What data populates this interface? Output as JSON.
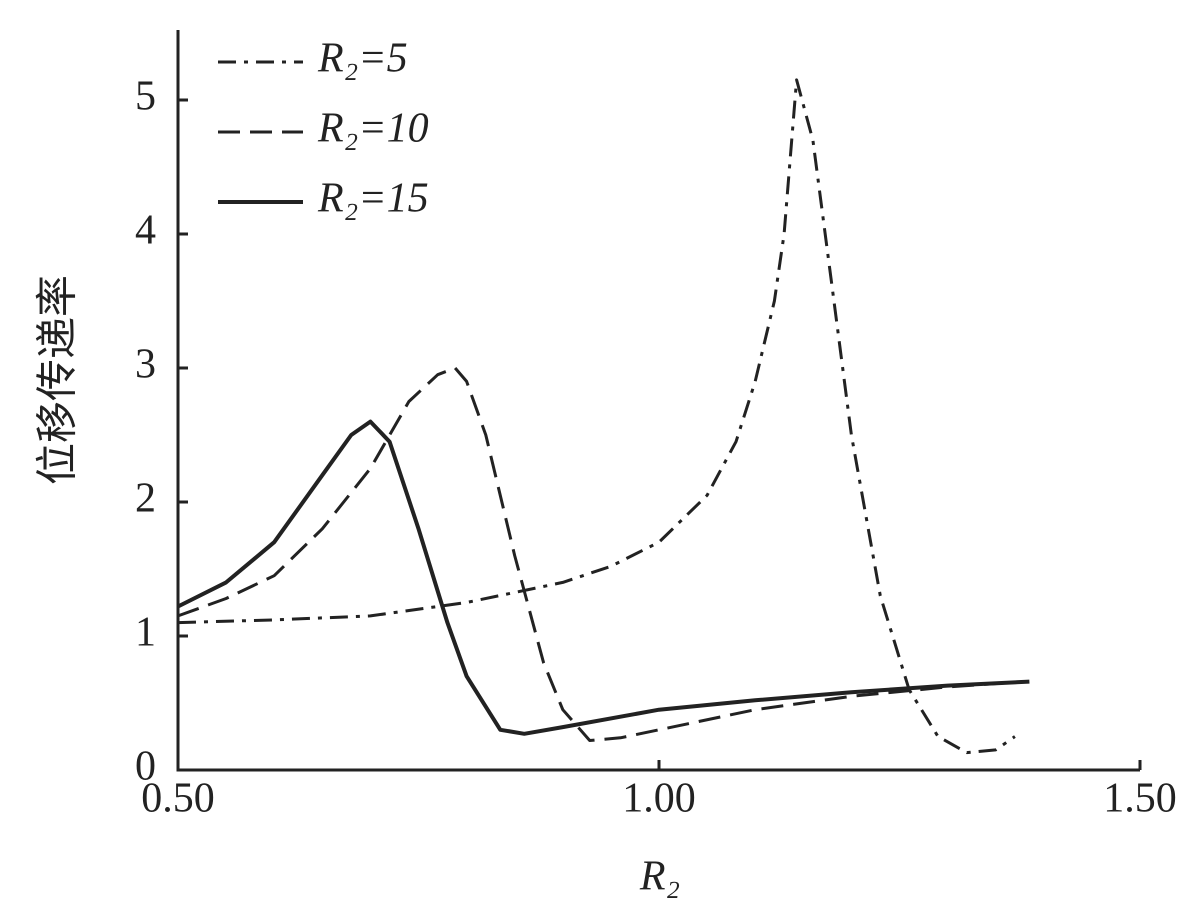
{
  "chart_data": {
    "type": "line",
    "x_label": "R₂",
    "y_label": "位移传递率",
    "xlim": [
      0.5,
      1.5
    ],
    "ylim": [
      0,
      5.5
    ],
    "xticks": [
      {
        "value": 0.5,
        "label": "0.50"
      },
      {
        "value": 1.0,
        "label": "1.00"
      },
      {
        "value": 1.5,
        "label": "1.50"
      }
    ],
    "yticks": [
      0,
      1,
      2,
      3,
      4,
      5
    ],
    "legend": "upper left",
    "series": [
      {
        "name": "R₂=5",
        "color": "#222222",
        "dash": "dashdot",
        "x": [
          0.5,
          0.6,
          0.7,
          0.8,
          0.9,
          0.95,
          1.0,
          1.05,
          1.08,
          1.1,
          1.12,
          1.13,
          1.143,
          1.16,
          1.18,
          1.2,
          1.23,
          1.26,
          1.29,
          1.32,
          1.35,
          1.37
        ],
        "values": [
          1.1,
          1.12,
          1.15,
          1.25,
          1.4,
          1.52,
          1.7,
          2.05,
          2.45,
          2.9,
          3.5,
          4.0,
          5.15,
          4.7,
          3.6,
          2.5,
          1.3,
          0.6,
          0.25,
          0.13,
          0.15,
          0.25
        ]
      },
      {
        "name": "R₂=10",
        "color": "#222222",
        "dash": "dashed",
        "x": [
          0.5,
          0.55,
          0.6,
          0.65,
          0.7,
          0.74,
          0.77,
          0.788,
          0.8,
          0.82,
          0.85,
          0.88,
          0.9,
          0.928,
          0.96,
          1.0,
          1.1,
          1.2,
          1.3,
          1.38
        ],
        "values": [
          1.15,
          1.28,
          1.45,
          1.8,
          2.25,
          2.75,
          2.95,
          3.0,
          2.9,
          2.5,
          1.6,
          0.8,
          0.45,
          0.22,
          0.24,
          0.3,
          0.45,
          0.55,
          0.62,
          0.66
        ]
      },
      {
        "name": "R₂=15",
        "color": "#222222",
        "dash": "solid",
        "x": [
          0.5,
          0.55,
          0.6,
          0.65,
          0.68,
          0.7,
          0.72,
          0.75,
          0.78,
          0.8,
          0.835,
          0.86,
          0.9,
          1.0,
          1.1,
          1.2,
          1.3,
          1.385
        ],
        "values": [
          1.22,
          1.4,
          1.7,
          2.2,
          2.5,
          2.6,
          2.45,
          1.8,
          1.1,
          0.7,
          0.3,
          0.27,
          0.32,
          0.45,
          0.52,
          0.58,
          0.63,
          0.66
        ]
      }
    ]
  }
}
